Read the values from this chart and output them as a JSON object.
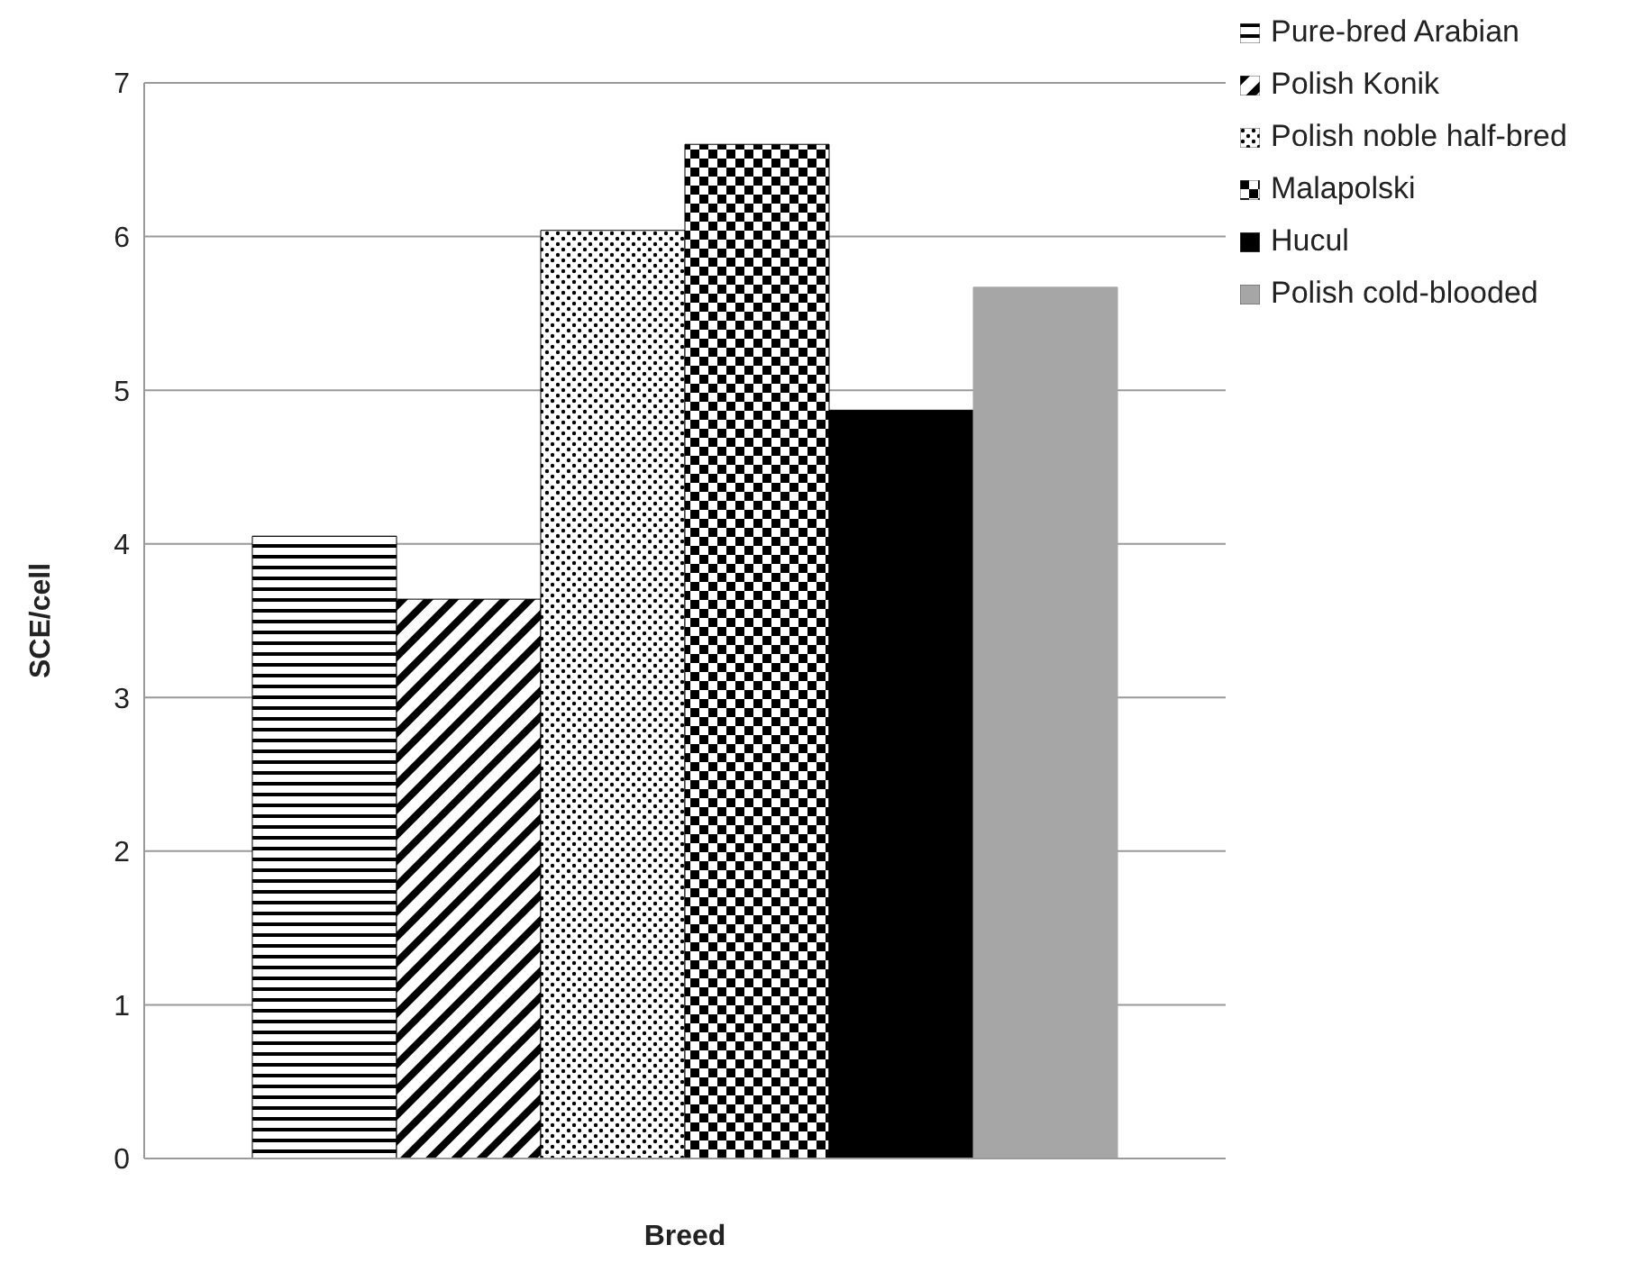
{
  "chart_data": {
    "type": "bar",
    "xlabel": "Breed",
    "ylabel": "SCE/cell",
    "categories": [
      null
    ],
    "series": [
      {
        "name": "Pure-bred Arabian",
        "color": "#000000",
        "values": [
          4.05
        ]
      },
      {
        "name": "Polish Konik",
        "color": "#000000",
        "values": [
          3.64
        ]
      },
      {
        "name": "Polish noble half-bred",
        "color": "#000000",
        "values": [
          6.04
        ]
      },
      {
        "name": "Malapolski",
        "color": "#000000",
        "values": [
          6.6
        ]
      },
      {
        "name": "Hucul",
        "color": "#000000",
        "values": [
          4.87
        ]
      },
      {
        "name": "Polish cold-blooded",
        "color": "#a6a6a6",
        "values": [
          5.67
        ]
      }
    ],
    "ylim": [
      0,
      7
    ],
    "yticks": [
      0,
      1,
      2,
      3,
      4,
      5,
      6,
      7
    ],
    "grid": "y",
    "legend": "top right"
  }
}
